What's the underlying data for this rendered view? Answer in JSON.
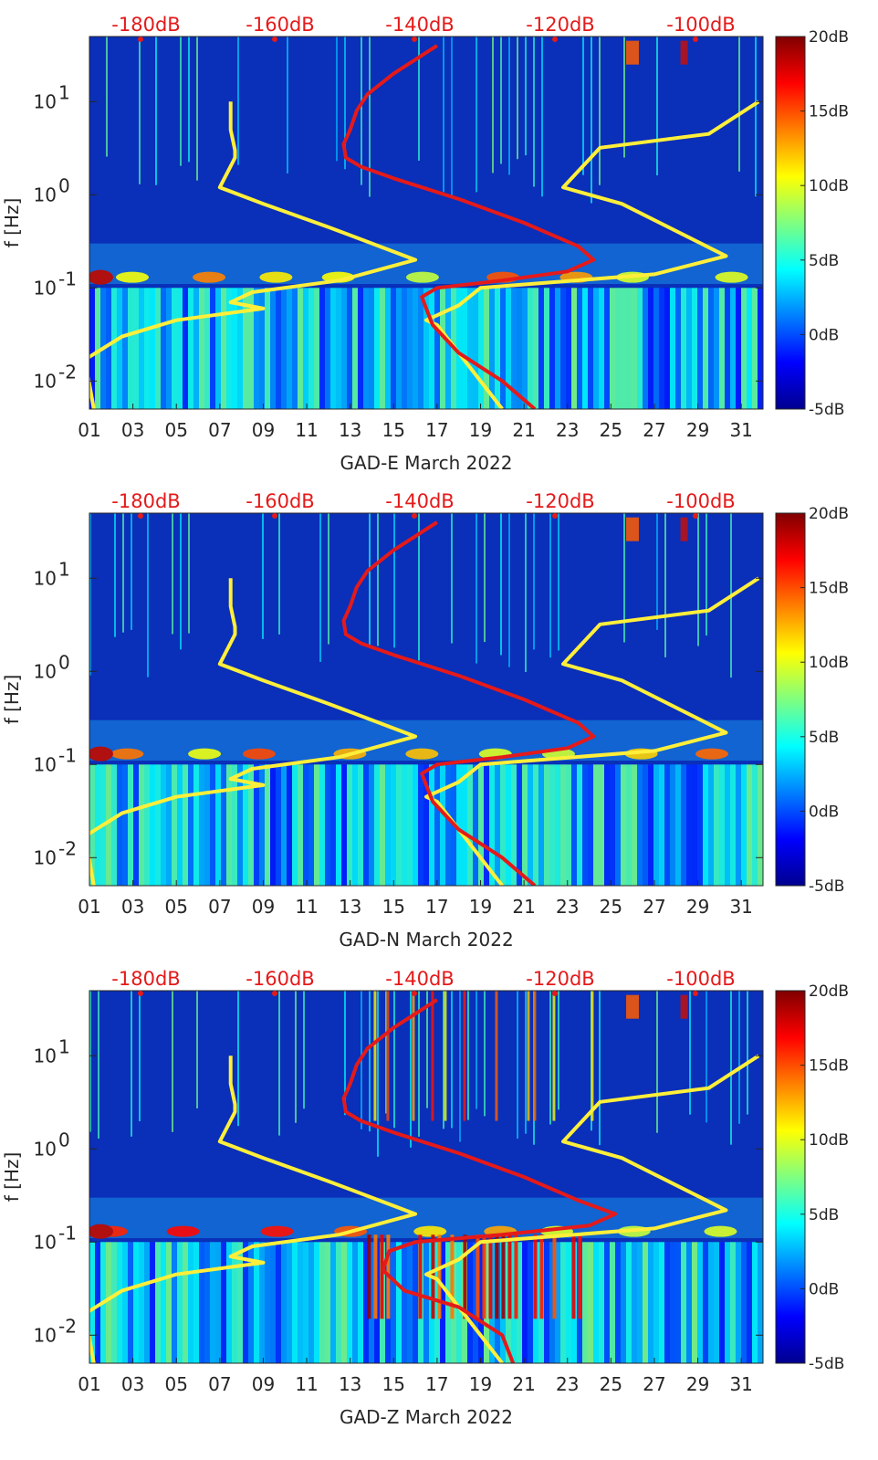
{
  "chart_data": [
    {
      "type": "heatmap",
      "title": "",
      "xlabel": "GAD-E March 2022",
      "ylabel": "f [Hz]",
      "y_scale": "log",
      "ylim": [
        0.005,
        50
      ],
      "xlim": [
        1,
        32
      ],
      "x_ticks": [
        "01",
        "03",
        "05",
        "07",
        "09",
        "11",
        "13",
        "15",
        "17",
        "19",
        "21",
        "23",
        "25",
        "27",
        "29",
        "31"
      ],
      "y_ticks": [
        {
          "value": 0.01,
          "label": "10",
          "exp": "-2"
        },
        {
          "value": 0.1,
          "label": "10",
          "exp": "-1"
        },
        {
          "value": 1,
          "label": "10",
          "exp": "0"
        },
        {
          "value": 10,
          "label": "10",
          "exp": "1"
        }
      ],
      "top_axis_labels": [
        "-180dB",
        "-160dB",
        "-140dB",
        "-120dB",
        "-100dB"
      ],
      "colorbar": {
        "range": [
          -5,
          20
        ],
        "labels": [
          "20dB",
          "15dB",
          "10dB",
          "5dB",
          "0dB",
          "-5dB"
        ],
        "colormap": "jet"
      },
      "series": [
        {
          "color": "#ffef3a",
          "x": [
            7.5,
            7.5,
            7.7,
            7.7,
            7.0,
            9.0,
            12.0,
            16.0,
            12.5,
            8.5,
            7.5,
            9.0,
            5.0,
            2.5,
            0.8,
            1.2
          ],
          "y": [
            10,
            5,
            3,
            2.5,
            1.2,
            0.8,
            0.45,
            0.2,
            0.12,
            0.09,
            0.07,
            0.06,
            0.045,
            0.03,
            0.017,
            0.005
          ]
        },
        {
          "color": "#ffef3a",
          "x": [
            31.8,
            29.5,
            24.5,
            22.8,
            25.5,
            30.3,
            27.0,
            19.0,
            18.0,
            16.5,
            17.0,
            20.0
          ],
          "y": [
            10,
            4.5,
            3.2,
            1.2,
            0.8,
            0.22,
            0.14,
            0.1,
            0.065,
            0.045,
            0.04,
            0.005
          ]
        },
        {
          "color": "#e41a1a",
          "x": [
            17,
            15,
            13.8,
            13.3,
            13,
            12.7,
            12.8,
            13.5,
            15,
            18,
            21,
            23.5,
            24.2,
            23,
            20,
            17,
            16.3,
            16.5,
            16.8,
            18,
            20,
            21.5
          ],
          "y": [
            40,
            20,
            12,
            8,
            5,
            3.5,
            2.5,
            2,
            1.5,
            0.9,
            0.5,
            0.28,
            0.2,
            0.15,
            0.12,
            0.1,
            0.08,
            0.06,
            0.04,
            0.02,
            0.01,
            0.005
          ]
        }
      ]
    },
    {
      "type": "heatmap",
      "title": "",
      "xlabel": "GAD-N March 2022",
      "ylabel": "f [Hz]",
      "y_scale": "log",
      "ylim": [
        0.005,
        50
      ],
      "xlim": [
        1,
        32
      ],
      "x_ticks": [
        "01",
        "03",
        "05",
        "07",
        "09",
        "11",
        "13",
        "15",
        "17",
        "19",
        "21",
        "23",
        "25",
        "27",
        "29",
        "31"
      ],
      "y_ticks": [
        {
          "value": 0.01,
          "label": "10",
          "exp": "-2"
        },
        {
          "value": 0.1,
          "label": "10",
          "exp": "-1"
        },
        {
          "value": 1,
          "label": "10",
          "exp": "0"
        },
        {
          "value": 10,
          "label": "10",
          "exp": "1"
        }
      ],
      "top_axis_labels": [
        "-180dB",
        "-160dB",
        "-140dB",
        "-120dB",
        "-100dB"
      ],
      "colorbar": {
        "range": [
          -5,
          20
        ],
        "labels": [
          "20dB",
          "15dB",
          "10dB",
          "5dB",
          "0dB",
          "-5dB"
        ],
        "colormap": "jet"
      },
      "series": [
        {
          "color": "#ffef3a",
          "x": [
            7.5,
            7.5,
            7.7,
            7.7,
            7.0,
            9.0,
            12.0,
            16.0,
            12.5,
            8.5,
            7.5,
            9.0,
            5.0,
            2.5,
            0.8,
            1.2
          ],
          "y": [
            10,
            5,
            3,
            2.5,
            1.2,
            0.8,
            0.45,
            0.2,
            0.12,
            0.09,
            0.07,
            0.06,
            0.045,
            0.03,
            0.017,
            0.005
          ]
        },
        {
          "color": "#ffef3a",
          "x": [
            31.8,
            29.5,
            24.5,
            22.8,
            25.5,
            30.3,
            27.0,
            19.0,
            18.0,
            16.5,
            17.0,
            20.0
          ],
          "y": [
            10,
            4.5,
            3.2,
            1.2,
            0.8,
            0.22,
            0.14,
            0.1,
            0.065,
            0.045,
            0.04,
            0.005
          ]
        },
        {
          "color": "#e41a1a",
          "x": [
            17,
            15,
            13.8,
            13.3,
            13,
            12.7,
            12.8,
            13.5,
            15,
            18,
            21,
            23.5,
            24.2,
            23,
            20,
            17,
            16.3,
            16.5,
            16.8,
            18,
            20,
            21.5
          ],
          "y": [
            40,
            20,
            12,
            8,
            5,
            3.5,
            2.5,
            2,
            1.5,
            0.9,
            0.5,
            0.28,
            0.2,
            0.15,
            0.12,
            0.1,
            0.08,
            0.06,
            0.04,
            0.02,
            0.01,
            0.005
          ]
        }
      ]
    },
    {
      "type": "heatmap",
      "title": "",
      "xlabel": "GAD-Z March 2022",
      "ylabel": "f [Hz]",
      "y_scale": "log",
      "ylim": [
        0.005,
        50
      ],
      "xlim": [
        1,
        32
      ],
      "x_ticks": [
        "01",
        "03",
        "05",
        "07",
        "09",
        "11",
        "13",
        "15",
        "17",
        "19",
        "21",
        "23",
        "25",
        "27",
        "29",
        "31"
      ],
      "y_ticks": [
        {
          "value": 0.01,
          "label": "10",
          "exp": "-2"
        },
        {
          "value": 0.1,
          "label": "10",
          "exp": "-1"
        },
        {
          "value": 1,
          "label": "10",
          "exp": "0"
        },
        {
          "value": 10,
          "label": "10",
          "exp": "1"
        }
      ],
      "top_axis_labels": [
        "-180dB",
        "-160dB",
        "-140dB",
        "-120dB",
        "-100dB"
      ],
      "colorbar": {
        "range": [
          -5,
          20
        ],
        "labels": [
          "20dB",
          "15dB",
          "10dB",
          "5dB",
          "0dB",
          "-5dB"
        ],
        "colormap": "jet"
      },
      "series": [
        {
          "color": "#ffef3a",
          "x": [
            7.5,
            7.5,
            7.7,
            7.7,
            7.0,
            9.0,
            12.0,
            16.0,
            12.5,
            8.5,
            7.5,
            9.0,
            5.0,
            2.5,
            0.8,
            1.2
          ],
          "y": [
            10,
            5,
            3,
            2.5,
            1.2,
            0.8,
            0.45,
            0.2,
            0.12,
            0.09,
            0.07,
            0.06,
            0.045,
            0.03,
            0.017,
            0.005
          ]
        },
        {
          "color": "#ffef3a",
          "x": [
            31.8,
            29.5,
            24.5,
            22.8,
            25.5,
            30.3,
            27.0,
            19.0,
            18.0,
            16.5,
            17.0,
            20.0
          ],
          "y": [
            10,
            4.5,
            3.2,
            1.2,
            0.8,
            0.22,
            0.14,
            0.1,
            0.065,
            0.045,
            0.04,
            0.005
          ]
        },
        {
          "color": "#e41a1a",
          "x": [
            17,
            15,
            13.8,
            13.3,
            13,
            12.7,
            12.8,
            13.5,
            15,
            18,
            21,
            23.5,
            25.2,
            24,
            20,
            16,
            14.8,
            14.5,
            15.5,
            18,
            20,
            20.5
          ],
          "y": [
            40,
            20,
            12,
            8,
            5,
            3.5,
            2.5,
            2,
            1.5,
            0.9,
            0.5,
            0.28,
            0.2,
            0.15,
            0.12,
            0.1,
            0.08,
            0.05,
            0.03,
            0.02,
            0.01,
            0.005
          ]
        }
      ]
    }
  ]
}
